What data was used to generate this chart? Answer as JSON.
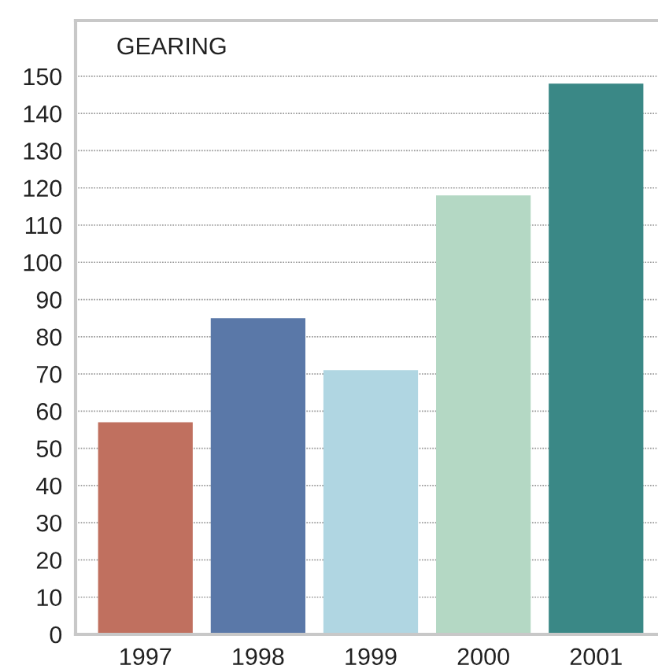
{
  "chart_data": {
    "type": "bar",
    "title": "GEARING",
    "categories": [
      "1997",
      "1998",
      "1999",
      "2000",
      "2001"
    ],
    "values": [
      57,
      85,
      71,
      118,
      148
    ],
    "colors": [
      "#c0705f",
      "#5a78a8",
      "#b0d6e2",
      "#b4d8c4",
      "#3a8886"
    ],
    "ylim": [
      0,
      165
    ],
    "yticks": [
      0,
      10,
      20,
      30,
      40,
      50,
      60,
      70,
      80,
      90,
      100,
      110,
      120,
      130,
      140,
      150
    ],
    "grid": "y"
  }
}
